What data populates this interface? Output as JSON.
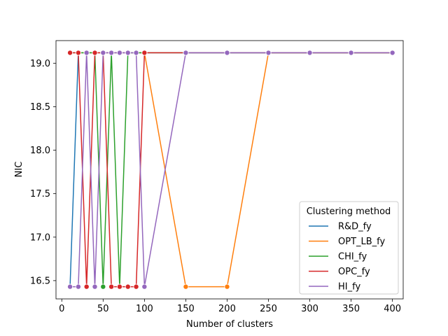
{
  "chart_data": {
    "type": "line",
    "xlabel": "Number of clusters",
    "ylabel": "NIC",
    "xlim": [
      -7,
      413
    ],
    "ylim": [
      16.29,
      19.26
    ],
    "x_ticks": [
      0,
      50,
      100,
      150,
      200,
      250,
      300,
      350,
      400
    ],
    "y_ticks": [
      16.5,
      17.0,
      17.5,
      18.0,
      18.5,
      19.0
    ],
    "x_tick_labels": [
      "0",
      "50",
      "100",
      "150",
      "200",
      "250",
      "300",
      "350",
      "400"
    ],
    "y_tick_labels": [
      "16.5",
      "17.0",
      "17.5",
      "18.0",
      "18.5",
      "19.0"
    ],
    "grid": false,
    "legend": {
      "title": "Clustering method",
      "placement": "lower-right"
    },
    "series": [
      {
        "name": "R&D_fy",
        "color": "#1f77b4",
        "x": [
          10,
          20,
          30,
          40,
          50,
          60,
          70,
          80,
          90,
          100,
          150,
          200,
          250,
          300,
          350,
          400
        ],
        "y": [
          16.43,
          19.12,
          19.12,
          19.12,
          19.12,
          19.12,
          19.12,
          19.12,
          19.12,
          19.12,
          19.12,
          19.12,
          19.12,
          19.12,
          19.12,
          19.12
        ]
      },
      {
        "name": "OPT_LB_fy",
        "color": "#ff7f0e",
        "x": [
          10,
          20,
          30,
          40,
          50,
          60,
          70,
          80,
          90,
          100,
          150,
          200,
          250,
          300,
          350,
          400
        ],
        "y": [
          19.12,
          19.12,
          19.12,
          19.12,
          19.12,
          19.12,
          19.12,
          19.12,
          19.12,
          19.12,
          16.43,
          16.43,
          19.12,
          19.12,
          19.12,
          19.12
        ]
      },
      {
        "name": "CHI_fy",
        "color": "#2ca02c",
        "x": [
          10,
          20,
          30,
          40,
          50,
          60,
          70,
          80,
          90,
          100,
          150,
          200,
          250,
          300,
          350,
          400
        ],
        "y": [
          19.12,
          19.12,
          19.12,
          19.12,
          16.43,
          19.12,
          16.43,
          19.12,
          19.12,
          19.12,
          19.12,
          19.12,
          19.12,
          19.12,
          19.12,
          19.12
        ]
      },
      {
        "name": "OPC_fy",
        "color": "#d62728",
        "x": [
          10,
          20,
          30,
          40,
          50,
          60,
          70,
          80,
          90,
          100,
          150,
          200,
          250,
          300,
          350,
          400
        ],
        "y": [
          19.12,
          19.12,
          16.43,
          19.12,
          19.12,
          16.43,
          16.43,
          16.43,
          16.43,
          19.12,
          19.12,
          19.12,
          19.12,
          19.12,
          19.12,
          19.12
        ]
      },
      {
        "name": "HI_fy",
        "color": "#9467bd",
        "x": [
          10,
          20,
          30,
          40,
          50,
          60,
          70,
          80,
          90,
          100,
          150,
          200,
          250,
          300,
          350,
          400
        ],
        "y": [
          16.43,
          16.43,
          19.12,
          16.43,
          19.12,
          19.12,
          19.12,
          19.12,
          19.12,
          16.43,
          19.12,
          19.12,
          19.12,
          19.12,
          19.12,
          19.12
        ]
      }
    ]
  }
}
